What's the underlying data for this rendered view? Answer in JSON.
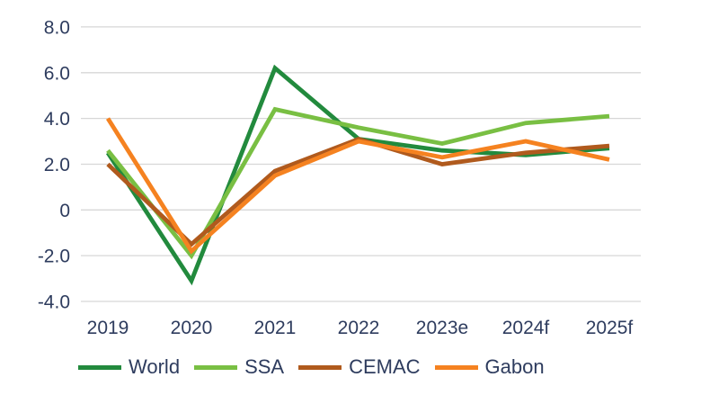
{
  "chart_data": {
    "type": "line",
    "title": "",
    "xlabel": "",
    "ylabel": "",
    "categories": [
      "2019",
      "2020",
      "2021",
      "2022",
      "2023e",
      "2024f",
      "2025f"
    ],
    "series": [
      {
        "name": "World",
        "color": "#228a3d",
        "values": [
          2.5,
          -3.1,
          6.2,
          3.1,
          2.6,
          2.4,
          2.7
        ]
      },
      {
        "name": "SSA",
        "color": "#79bf43",
        "values": [
          2.6,
          -2.0,
          4.4,
          3.6,
          2.9,
          3.8,
          4.1
        ]
      },
      {
        "name": "CEMAC",
        "color": "#b05a1d",
        "values": [
          2.0,
          -1.5,
          1.7,
          3.1,
          2.0,
          2.5,
          2.8
        ]
      },
      {
        "name": "Gabon",
        "color": "#f58220",
        "values": [
          4.0,
          -1.8,
          1.5,
          3.0,
          2.3,
          3.0,
          2.2
        ]
      }
    ],
    "y_ticks": [
      {
        "value": 8,
        "label": "8.0"
      },
      {
        "value": 6,
        "label": "6.0"
      },
      {
        "value": 4,
        "label": "4.0"
      },
      {
        "value": 2,
        "label": "2.0"
      },
      {
        "value": 0,
        "label": "0"
      },
      {
        "value": -2,
        "label": "-2.0"
      },
      {
        "value": -4,
        "label": "-4.0"
      }
    ],
    "ylim": [
      -4,
      8
    ],
    "grid": true,
    "legend_position": "bottom"
  },
  "colors": {
    "axis_text": "#2e3c5e",
    "gridline": "#d7d7d7",
    "background": "#ffffff"
  }
}
